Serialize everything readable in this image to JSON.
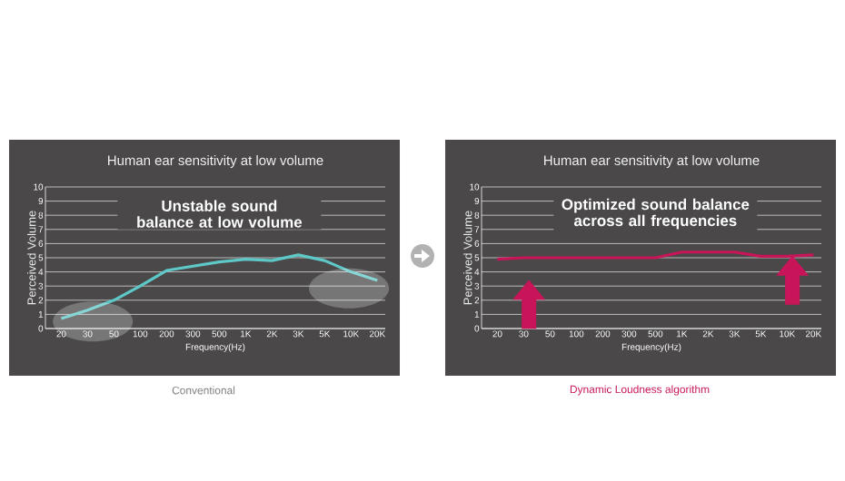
{
  "chart_data": [
    {
      "type": "line",
      "title": "Human ear sensitivity at low volume",
      "xlabel": "Frequency(Hz)",
      "ylabel": "Perceived Volume",
      "categories": [
        "20",
        "30",
        "50",
        "100",
        "200",
        "300",
        "500",
        "1K",
        "2K",
        "3K",
        "5K",
        "10K",
        "20K"
      ],
      "series": [
        {
          "color": "#5ec8c8",
          "values": [
            0.7,
            1.3,
            2.0,
            3.0,
            4.1,
            4.4,
            4.7,
            4.9,
            4.8,
            5.2,
            4.8,
            4.0,
            3.4
          ]
        }
      ],
      "ylim": [
        0,
        10
      ],
      "yticks": [
        0,
        1,
        2,
        3,
        4,
        5,
        6,
        7,
        8,
        9,
        10
      ],
      "grid": "y",
      "marker": "none",
      "annotations": [
        "Unstable sound balance at low volume",
        "Conventional"
      ]
    },
    {
      "type": "line",
      "title": "Human ear sensitivity at low volume",
      "xlabel": "Frequency(Hz)",
      "ylabel": "Perceived Volume",
      "categories": [
        "20",
        "30",
        "50",
        "100",
        "200",
        "300",
        "500",
        "1K",
        "2K",
        "3K",
        "5K",
        "10K",
        "20K"
      ],
      "series": [
        {
          "color": "#c8155a",
          "values": [
            4.9,
            5.0,
            5.0,
            5.0,
            5.0,
            5.0,
            5.0,
            5.4,
            5.4,
            5.4,
            5.1,
            5.1,
            5.2
          ]
        }
      ],
      "ylim": [
        0,
        10
      ],
      "yticks": [
        0,
        1,
        2,
        3,
        4,
        5,
        6,
        7,
        8,
        9,
        10
      ],
      "grid": "y",
      "marker": "none",
      "annotations": [
        "Optimized sound balance across all frequencies",
        "Dynamic Loudness algorithm"
      ]
    }
  ]
}
